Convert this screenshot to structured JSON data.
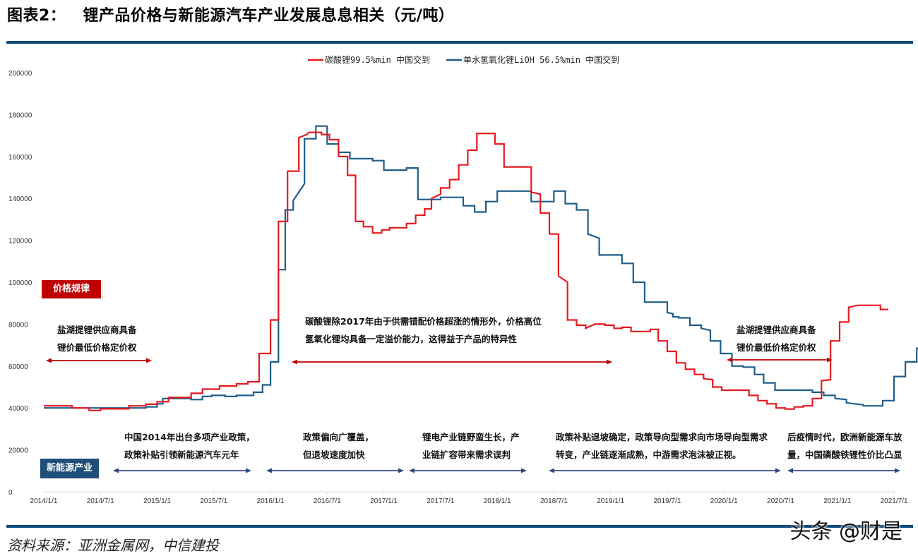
{
  "header": {
    "figure_label": "图表2：",
    "title": "锂产品价格与新能源汽车产业发展息息相关（元/吨）"
  },
  "footer": {
    "source": "资料来源：亚洲金属网，中信建投",
    "watermark": "头条 @财是"
  },
  "colors": {
    "rule": "#0f4a7a",
    "lithium_carbonate": "#e8191f",
    "lithium_hydroxide": "#1f5d8a",
    "price_badge": "#c00000",
    "industry_badge": "#1f4e79",
    "price_arrow": "#c00000",
    "industry_arrow": "#2e4d7a"
  },
  "badges": {
    "price": "价格规律",
    "industry": "新能源产业"
  },
  "notes": {
    "left_price_1": "盐湖提锂供应商具备",
    "left_price_2": "锂价最低价格定价权",
    "mid_price_1": "碳酸锂除2017年由于供需错配价格超涨的情形外，价格高位",
    "mid_price_2": "氢氧化锂均具备一定溢价能力，这得益于产品的特异性",
    "right_price_1": "盐湖提锂供应商具备",
    "right_price_2": "锂价最低价格定价权",
    "ind1_1": "中国2014年出台多项产业政策，",
    "ind1_2": "政策补贴引领新能源汽车元年",
    "ind2_1": "政策偏向广覆盖，",
    "ind2_2": "但退坡速度加快",
    "ind3_1": "锂电产业链野蛮生长，产",
    "ind3_2": "业链扩容带来需求误判",
    "ind4_1": "政策补贴退坡确定，政策导向型需求向市场导向型需求",
    "ind4_2": "转变，产业链逐渐成熟，中游需求泡沫被正视。",
    "ind5_1": "后疫情时代，欧洲新能源车放",
    "ind5_2": "量，中国磷酸铁锂性价比凸显"
  },
  "chart_data": {
    "type": "line",
    "title": "锂产品价格与新能源汽车产业发展息息相关（元/吨）",
    "xlabel": "",
    "ylabel": "元/吨",
    "ylim": [
      0,
      200000
    ],
    "yticks": [
      0,
      20000,
      40000,
      60000,
      80000,
      100000,
      120000,
      140000,
      160000,
      180000,
      200000
    ],
    "xticks": [
      "2014/1/1",
      "2014/7/1",
      "2015/1/1",
      "2015/7/1",
      "2016/1/1",
      "2016/7/1",
      "2017/1/1",
      "2017/7/1",
      "2018/1/1",
      "2018/7/1",
      "2019/1/1",
      "2019/7/1",
      "2020/1/1",
      "2020/7/1",
      "2021/1/1",
      "2021/7/1"
    ],
    "grid": false,
    "legend_position": "top",
    "x_unit": "years since 2014/1/1",
    "series": [
      {
        "name": "碳酸锂99.5%min 中国交到",
        "color": "#e8191f",
        "step": true,
        "points": [
          [
            0.0,
            41000
          ],
          [
            0.25,
            41000
          ],
          [
            0.25,
            40000
          ],
          [
            0.4,
            40000
          ],
          [
            0.4,
            38800
          ],
          [
            0.5,
            38800
          ],
          [
            0.5,
            39600
          ],
          [
            0.75,
            39600
          ],
          [
            0.75,
            41000
          ],
          [
            0.9,
            41000
          ],
          [
            0.9,
            41800
          ],
          [
            1.0,
            41800
          ],
          [
            1.0,
            43000
          ],
          [
            1.1,
            43000
          ],
          [
            1.1,
            45000
          ],
          [
            1.3,
            45000
          ],
          [
            1.3,
            47000
          ],
          [
            1.4,
            47000
          ],
          [
            1.4,
            49000
          ],
          [
            1.55,
            49000
          ],
          [
            1.55,
            50500
          ],
          [
            1.7,
            50500
          ],
          [
            1.7,
            51500
          ],
          [
            1.8,
            51500
          ],
          [
            1.8,
            52500
          ],
          [
            1.9,
            52500
          ],
          [
            1.9,
            66000
          ],
          [
            2.0,
            66000
          ],
          [
            2.0,
            82000
          ],
          [
            2.07,
            82000
          ],
          [
            2.07,
            129000
          ],
          [
            2.15,
            129000
          ],
          [
            2.15,
            153000
          ],
          [
            2.25,
            153000
          ],
          [
            2.25,
            169000
          ],
          [
            2.32,
            170500
          ],
          [
            2.34,
            171500
          ],
          [
            2.45,
            171500
          ],
          [
            2.45,
            170500
          ],
          [
            2.52,
            170500
          ],
          [
            2.52,
            168000
          ],
          [
            2.6,
            168000
          ],
          [
            2.6,
            160000
          ],
          [
            2.68,
            160000
          ],
          [
            2.68,
            151000
          ],
          [
            2.75,
            151000
          ],
          [
            2.75,
            129000
          ],
          [
            2.82,
            129000
          ],
          [
            2.82,
            126500
          ],
          [
            2.9,
            126500
          ],
          [
            2.9,
            123500
          ],
          [
            2.98,
            123500
          ],
          [
            2.98,
            125000
          ],
          [
            3.05,
            125000
          ],
          [
            3.05,
            126000
          ],
          [
            3.2,
            126000
          ],
          [
            3.2,
            128000
          ],
          [
            3.28,
            128000
          ],
          [
            3.28,
            132000
          ],
          [
            3.36,
            132000
          ],
          [
            3.36,
            135000
          ],
          [
            3.42,
            135000
          ],
          [
            3.42,
            140000
          ],
          [
            3.5,
            142000
          ],
          [
            3.5,
            145000
          ],
          [
            3.58,
            145000
          ],
          [
            3.58,
            149000
          ],
          [
            3.66,
            149000
          ],
          [
            3.66,
            156000
          ],
          [
            3.74,
            156000
          ],
          [
            3.74,
            163000
          ],
          [
            3.82,
            163000
          ],
          [
            3.82,
            171000
          ],
          [
            3.98,
            171000
          ],
          [
            3.98,
            166000
          ],
          [
            4.06,
            166000
          ],
          [
            4.06,
            155000
          ],
          [
            4.3,
            155000
          ],
          [
            4.3,
            143000
          ],
          [
            4.38,
            142000
          ],
          [
            4.38,
            133000
          ],
          [
            4.46,
            133000
          ],
          [
            4.46,
            123000
          ],
          [
            4.54,
            123000
          ],
          [
            4.54,
            103000
          ],
          [
            4.62,
            100000
          ],
          [
            4.62,
            82000
          ],
          [
            4.7,
            82000
          ],
          [
            4.7,
            79500
          ],
          [
            4.78,
            79500
          ],
          [
            4.78,
            78000
          ],
          [
            4.86,
            80000
          ],
          [
            4.95,
            80000
          ],
          [
            4.95,
            79500
          ],
          [
            5.03,
            79500
          ],
          [
            5.03,
            78000
          ],
          [
            5.1,
            78000
          ],
          [
            5.1,
            78500
          ],
          [
            5.18,
            78500
          ],
          [
            5.18,
            76500
          ],
          [
            5.35,
            76500
          ],
          [
            5.35,
            77500
          ],
          [
            5.42,
            77500
          ],
          [
            5.42,
            72000
          ],
          [
            5.5,
            72000
          ],
          [
            5.5,
            67000
          ],
          [
            5.58,
            67000
          ],
          [
            5.58,
            61500
          ],
          [
            5.66,
            61500
          ],
          [
            5.66,
            58500
          ],
          [
            5.74,
            58500
          ],
          [
            5.74,
            56000
          ],
          [
            5.82,
            56000
          ],
          [
            5.82,
            54000
          ],
          [
            5.9,
            53500
          ],
          [
            5.9,
            50000
          ],
          [
            5.98,
            50000
          ],
          [
            5.98,
            48500
          ],
          [
            6.22,
            48500
          ],
          [
            6.22,
            46000
          ],
          [
            6.3,
            46000
          ],
          [
            6.3,
            43500
          ],
          [
            6.38,
            43500
          ],
          [
            6.38,
            42000
          ],
          [
            6.46,
            42000
          ],
          [
            6.46,
            40000
          ],
          [
            6.54,
            40000
          ],
          [
            6.54,
            39500
          ],
          [
            6.62,
            39500
          ],
          [
            6.62,
            40500
          ],
          [
            6.7,
            40500
          ],
          [
            6.7,
            41000
          ],
          [
            6.78,
            41000
          ],
          [
            6.78,
            44500
          ],
          [
            6.86,
            44500
          ],
          [
            6.86,
            53000
          ],
          [
            6.94,
            53500
          ],
          [
            6.94,
            72000
          ],
          [
            7.02,
            72000
          ],
          [
            7.02,
            81000
          ],
          [
            7.1,
            81000
          ],
          [
            7.1,
            88000
          ],
          [
            7.18,
            89000
          ],
          [
            7.38,
            89000
          ],
          [
            7.38,
            87000
          ],
          [
            7.45,
            87000
          ]
        ]
      },
      {
        "name": "单水氢氧化锂LiOH 56.5%min 中国交到",
        "color": "#1f5d8a",
        "step": true,
        "points": [
          [
            0.0,
            40000
          ],
          [
            0.9,
            40000
          ],
          [
            0.9,
            40500
          ],
          [
            1.0,
            40500
          ],
          [
            1.0,
            42000
          ],
          [
            1.05,
            42000
          ],
          [
            1.05,
            44500
          ],
          [
            1.3,
            44500
          ],
          [
            1.3,
            44000
          ],
          [
            1.4,
            44000
          ],
          [
            1.4,
            45500
          ],
          [
            1.48,
            45500
          ],
          [
            1.48,
            46000
          ],
          [
            1.6,
            46000
          ],
          [
            1.6,
            45500
          ],
          [
            1.7,
            45500
          ],
          [
            1.7,
            46000
          ],
          [
            1.85,
            46000
          ],
          [
            1.85,
            47500
          ],
          [
            1.93,
            47500
          ],
          [
            1.93,
            51000
          ],
          [
            2.0,
            51000
          ],
          [
            2.0,
            62000
          ],
          [
            2.07,
            62000
          ],
          [
            2.07,
            106000
          ],
          [
            2.13,
            106000
          ],
          [
            2.13,
            134500
          ],
          [
            2.2,
            134500
          ],
          [
            2.2,
            139000
          ],
          [
            2.3,
            147000
          ],
          [
            2.3,
            168500
          ],
          [
            2.4,
            168500
          ],
          [
            2.4,
            174500
          ],
          [
            2.5,
            174500
          ],
          [
            2.5,
            166000
          ],
          [
            2.6,
            166000
          ],
          [
            2.6,
            162000
          ],
          [
            2.7,
            162000
          ],
          [
            2.7,
            159000
          ],
          [
            2.9,
            159000
          ],
          [
            2.9,
            158000
          ],
          [
            3.0,
            158000
          ],
          [
            3.0,
            153500
          ],
          [
            3.2,
            153500
          ],
          [
            3.2,
            154500
          ],
          [
            3.3,
            154500
          ],
          [
            3.3,
            139500
          ],
          [
            3.5,
            139500
          ],
          [
            3.5,
            140500
          ],
          [
            3.7,
            140500
          ],
          [
            3.7,
            136500
          ],
          [
            3.8,
            136500
          ],
          [
            3.8,
            133500
          ],
          [
            3.9,
            133500
          ],
          [
            3.9,
            138500
          ],
          [
            4.0,
            138500
          ],
          [
            4.0,
            143500
          ],
          [
            4.3,
            143500
          ],
          [
            4.3,
            138500
          ],
          [
            4.5,
            138500
          ],
          [
            4.5,
            143500
          ],
          [
            4.6,
            143500
          ],
          [
            4.6,
            137500
          ],
          [
            4.7,
            137500
          ],
          [
            4.7,
            134500
          ],
          [
            4.8,
            134500
          ],
          [
            4.8,
            123000
          ],
          [
            4.9,
            121000
          ],
          [
            4.9,
            113000
          ],
          [
            5.1,
            113000
          ],
          [
            5.1,
            109000
          ],
          [
            5.2,
            109000
          ],
          [
            5.2,
            100000
          ],
          [
            5.3,
            100000
          ],
          [
            5.3,
            90500
          ],
          [
            5.5,
            90500
          ],
          [
            5.5,
            85500
          ],
          [
            5.55,
            85000
          ],
          [
            5.55,
            83500
          ],
          [
            5.6,
            83500
          ],
          [
            5.6,
            83000
          ],
          [
            5.7,
            83000
          ],
          [
            5.7,
            79500
          ],
          [
            5.8,
            79500
          ],
          [
            5.8,
            78000
          ],
          [
            5.88,
            77000
          ],
          [
            5.88,
            72000
          ],
          [
            5.97,
            72000
          ],
          [
            5.97,
            66000
          ],
          [
            6.07,
            66000
          ],
          [
            6.07,
            60000
          ],
          [
            6.17,
            60000
          ],
          [
            6.17,
            59500
          ],
          [
            6.27,
            59500
          ],
          [
            6.27,
            56000
          ],
          [
            6.35,
            56000
          ],
          [
            6.35,
            52000
          ],
          [
            6.45,
            52000
          ],
          [
            6.45,
            48500
          ],
          [
            6.78,
            48500
          ],
          [
            6.78,
            47500
          ],
          [
            6.88,
            47500
          ],
          [
            6.88,
            46000
          ],
          [
            6.98,
            46000
          ],
          [
            6.98,
            44500
          ],
          [
            7.08,
            44000
          ],
          [
            7.08,
            42500
          ],
          [
            7.15,
            42000
          ],
          [
            7.23,
            41500
          ],
          [
            7.23,
            41000
          ],
          [
            7.4,
            41000
          ],
          [
            7.4,
            43500
          ],
          [
            7.5,
            43500
          ],
          [
            7.5,
            55000
          ],
          [
            7.6,
            55000
          ],
          [
            7.6,
            62000
          ],
          [
            7.7,
            62000
          ],
          [
            7.7,
            68500
          ],
          [
            7.8,
            68500
          ],
          [
            7.8,
            77500
          ],
          [
            7.9,
            77500
          ],
          [
            7.9,
            87000
          ],
          [
            8.0,
            87000
          ],
          [
            8.0,
            88000
          ],
          [
            8.05,
            88000
          ]
        ]
      }
    ],
    "annotations": [
      {
        "type": "badge",
        "text": "价格规律"
      },
      {
        "type": "badge",
        "text": "新能源产业"
      },
      {
        "type": "range",
        "from": "2014/1/1",
        "to": "2014/12/1",
        "text": "盐湖提锂供应商具备 锂价最低价格定价权"
      },
      {
        "type": "range",
        "from": "2016/1/1",
        "to": "2019/1/1",
        "text": "碳酸锂除2017年由于供需错配价格超涨的情形外，价格高位氢氧化锂均具备一定溢价能力，这得益于产品的特异性"
      },
      {
        "type": "range",
        "from": "2020/1/1",
        "to": "2020/12/1",
        "text": "盐湖提锂供应商具备 锂价最低价格定价权"
      },
      {
        "type": "range",
        "from": "2014/9/1",
        "to": "2015/10/1",
        "text": "中国2014年出台多项产业政策，政策补贴引领新能源汽车元年"
      },
      {
        "type": "range",
        "from": "2016/1/1",
        "to": "2017/3/1",
        "text": "政策偏向广覆盖，但退坡速度加快"
      },
      {
        "type": "range",
        "from": "2017/3/1",
        "to": "2018/3/1",
        "text": "锂电产业链野蛮生长，产业链扩容带来需求误判"
      },
      {
        "type": "range",
        "from": "2018/7/1",
        "to": "2020/7/1",
        "text": "政策补贴退坡确定，政策导向型需求向市场导向型需求转变，产业链逐渐成熟，中游需求泡沫被正视。"
      },
      {
        "type": "range",
        "from": "2020/7/1",
        "to": "2021/7/1",
        "text": "后疫情时代，欧洲新能源车放量，中国磷酸铁锂性价比凸显"
      }
    ]
  }
}
